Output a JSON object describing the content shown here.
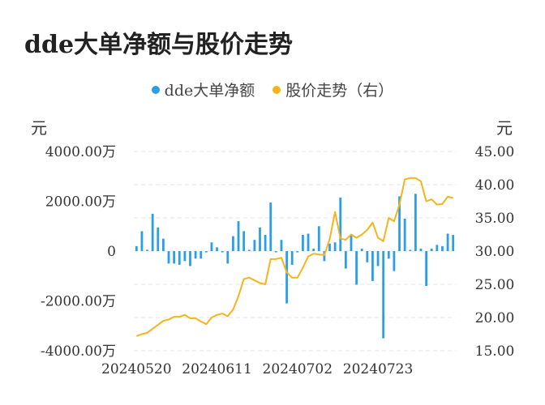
{
  "title": "dde大单净额与股价走势",
  "legend": [
    {
      "label": "dde大单净额",
      "color": "#2a9ee6"
    },
    {
      "label": "股价走势（右）",
      "color": "#f5b41b"
    }
  ],
  "units": {
    "left": "元",
    "right": "元"
  },
  "chart_data": {
    "type": "bar+line",
    "left_axis": {
      "ticks": [
        "4000.00万",
        "2000.00万",
        "0",
        "-2000.00万",
        "-4000.00万"
      ],
      "range": [
        -4000,
        4000
      ],
      "unit": "万"
    },
    "right_axis": {
      "ticks": [
        "45.00",
        "40.00",
        "35.00",
        "30.00",
        "25.00",
        "20.00",
        "15.00"
      ],
      "range": [
        15,
        45
      ]
    },
    "x_tick_labels": [
      "20240520",
      "20240611",
      "20240702",
      "20240723"
    ],
    "x_tick_indices": [
      0,
      15,
      30,
      45
    ],
    "grid": true,
    "legend_position": "top-center",
    "series": [
      {
        "name": "dde大单净额",
        "type": "bar",
        "color": "#2a9ee6",
        "values": [
          200,
          800,
          50,
          1500,
          950,
          500,
          -500,
          -500,
          -550,
          -400,
          -600,
          -300,
          -300,
          -50,
          350,
          150,
          -50,
          -500,
          600,
          1200,
          800,
          50,
          450,
          950,
          650,
          1950,
          -50,
          450,
          -2100,
          -550,
          -50,
          650,
          700,
          100,
          1000,
          -400,
          300,
          350,
          2150,
          -700,
          650,
          -1350,
          100,
          -450,
          -1200,
          -600,
          -3500,
          -300,
          -800,
          2200,
          1300,
          50,
          2300,
          100,
          -1400,
          100,
          250,
          200,
          700,
          650
        ]
      },
      {
        "name": "股价走势（右）",
        "type": "line",
        "color": "#f5b41b",
        "values": [
          17.2,
          17.5,
          17.7,
          18.3,
          18.9,
          19.5,
          19.7,
          20.1,
          20.1,
          20.4,
          19.9,
          19.9,
          19.4,
          19.0,
          20.0,
          20.4,
          20.6,
          20.2,
          21.2,
          23.2,
          25.8,
          26.0,
          25.6,
          25.2,
          25.0,
          28.8,
          28.8,
          29.0,
          26.8,
          26.0,
          26.0,
          27.5,
          29.2,
          29.6,
          29.5,
          29.4,
          31.8,
          35.9,
          31.9,
          31.7,
          32.5,
          32.0,
          32.5,
          33.2,
          34.3,
          32.0,
          31.5,
          35.0,
          34.5,
          37.0,
          40.8,
          41.0,
          41.0,
          40.5,
          37.5,
          37.8,
          37.0,
          37.1,
          38.2,
          38.0
        ]
      }
    ]
  }
}
